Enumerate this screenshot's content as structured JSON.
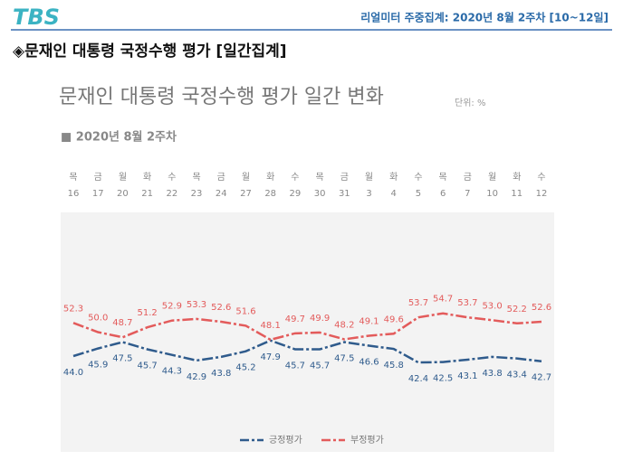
{
  "header": {
    "logo": "TBS",
    "report": "리얼미터 주중집계: 2020년 8월 2주차 [10~12일]",
    "heading": "◈문재인 대통령 국정수행 평가 [일간집계]"
  },
  "chart_data": {
    "type": "line",
    "title": "문재인 대통령 국정수행 평가 일간 변화",
    "unit": "단위: %",
    "subtitle": "■ 2020년 8월 2주차",
    "weekdays": [
      "목",
      "금",
      "월",
      "화",
      "수",
      "목",
      "금",
      "월",
      "화",
      "수",
      "목",
      "금",
      "월",
      "화",
      "수",
      "목",
      "금",
      "월",
      "화",
      "수"
    ],
    "categories": [
      "16",
      "17",
      "20",
      "21",
      "22",
      "23",
      "24",
      "27",
      "28",
      "29",
      "30",
      "31",
      "3",
      "4",
      "5",
      "6",
      "7",
      "10",
      "11",
      "12"
    ],
    "ylim": [
      20,
      80
    ],
    "series": [
      {
        "name": "긍정평가",
        "color": "#2f5b8c",
        "values": [
          44.0,
          45.9,
          47.5,
          45.7,
          44.3,
          42.9,
          43.8,
          45.2,
          47.9,
          45.7,
          45.7,
          47.5,
          46.6,
          45.8,
          42.4,
          42.5,
          43.1,
          43.8,
          43.4,
          42.7
        ],
        "value_labels": [
          "44.0",
          "45.9",
          "47.5",
          "45.7",
          "44.3",
          "42.9",
          "43.8",
          "45.2",
          "47.9",
          "45.7",
          "45.7",
          "47.5",
          "46.6",
          "45.8",
          "42.4",
          "42.5",
          "43.1",
          "43.8",
          "43.4",
          "42.7"
        ]
      },
      {
        "name": "부정평가",
        "color": "#e35b5b",
        "values": [
          52.3,
          50.0,
          48.7,
          51.2,
          52.9,
          53.3,
          52.6,
          51.6,
          48.1,
          49.7,
          49.9,
          48.2,
          49.1,
          49.6,
          53.7,
          54.7,
          53.7,
          53.0,
          52.2,
          52.6
        ],
        "value_labels": [
          "52.3",
          "50.0",
          "48.7",
          "51.2",
          "52.9",
          "53.3",
          "52.6",
          "51.6",
          "48.1",
          "49.7",
          "49.9",
          "48.2",
          "49.1",
          "49.6",
          "53.7",
          "54.7",
          "53.7",
          "53.0",
          "52.2",
          "52.6"
        ]
      }
    ]
  }
}
